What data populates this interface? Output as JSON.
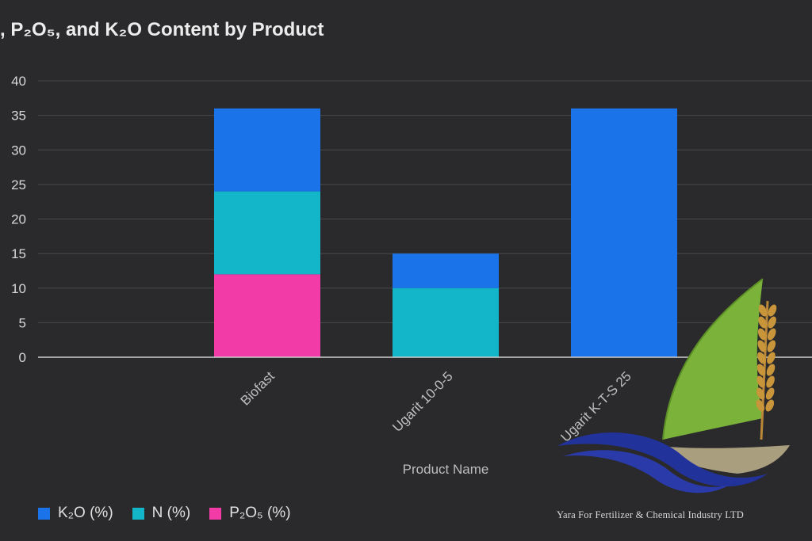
{
  "chart_data": {
    "type": "bar",
    "stacked": true,
    "title": ", P₂O₅, and K₂O Content by Product",
    "xlabel": "Product Name",
    "ylabel": "",
    "categories": [
      "Biofast",
      "Ugarit 10-0-5",
      "Ugarit K-T-S 25"
    ],
    "y_ticks": [
      "0",
      "5",
      "10",
      "15",
      "20",
      "25",
      "30",
      "35",
      "40"
    ],
    "ylim": [
      0,
      40
    ],
    "grid": true,
    "legend_position": "bottom-left",
    "series": [
      {
        "name": "P₂O₅ (%)",
        "color": "#f23ba6",
        "values": [
          12,
          0,
          0
        ]
      },
      {
        "name": "N (%)",
        "color": "#13b5c9",
        "values": [
          12,
          10,
          0
        ]
      },
      {
        "name": "K₂O (%)",
        "color": "#1a73e8",
        "values": [
          12,
          5,
          36
        ]
      }
    ],
    "legend_order": [
      2,
      1,
      0
    ]
  },
  "watermark": {
    "company_name": "Yara For Fertilizer & Chemical Industry LTD",
    "sail_color": "#7bb23a",
    "wheat_color": "#c9953a",
    "wave_color": "#22329b",
    "hull_color": "#a99e7e"
  }
}
